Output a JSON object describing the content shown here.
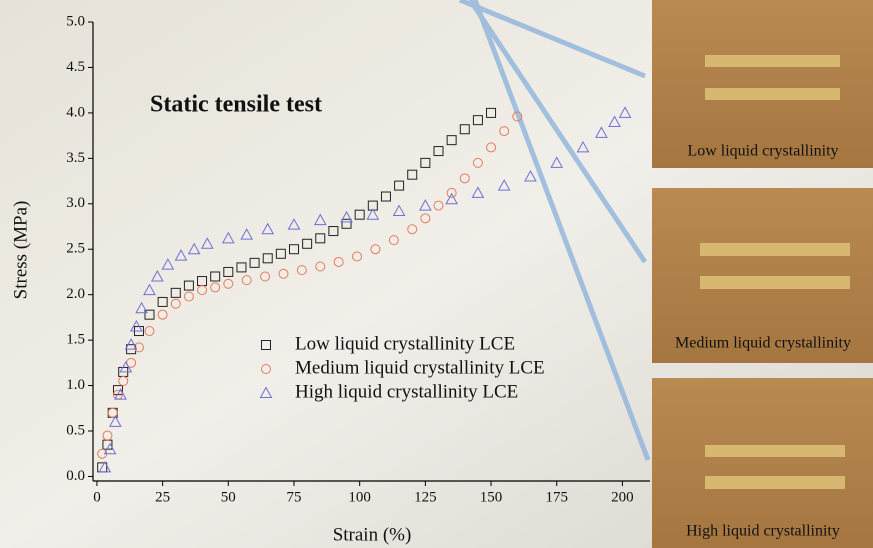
{
  "chart_data": {
    "type": "scatter",
    "title": "Static tensile test",
    "x_label": "Strain (%)",
    "y_label": "Stress (MPa)",
    "xlim": [
      -1.5,
      210.5
    ],
    "ylim": [
      -0.05,
      5
    ],
    "xticks": [
      0,
      25,
      50,
      75,
      100,
      125,
      150,
      175,
      200
    ],
    "yticks": [
      {
        "value": 0,
        "label": "0.0"
      },
      {
        "value": 0.5,
        "label": "0.5"
      },
      {
        "value": 1,
        "label": "1.0"
      },
      {
        "value": 1.5,
        "label": "1.5"
      },
      {
        "value": 2,
        "label": "2.0"
      },
      {
        "value": 2.5,
        "label": "2.5"
      },
      {
        "value": 3,
        "label": "3.0"
      },
      {
        "value": 3.5,
        "label": "3.5"
      },
      {
        "value": 4,
        "label": "4.0"
      },
      {
        "value": 4.5,
        "label": "4.5"
      },
      {
        "value": 5,
        "label": "5.0"
      }
    ],
    "series": [
      {
        "name": "Low liquid crystallinity LCE",
        "color": "#222222",
        "marker": "square",
        "x": [
          2,
          4,
          6,
          8,
          10,
          13,
          16,
          20,
          25,
          30,
          35,
          40,
          45,
          50,
          55,
          60,
          65,
          70,
          75,
          80,
          85,
          90,
          95,
          100,
          105,
          110,
          115,
          120,
          125,
          130,
          135,
          140,
          145,
          150
        ],
        "values": [
          0.1,
          0.35,
          0.7,
          0.95,
          1.15,
          1.4,
          1.6,
          1.78,
          1.92,
          2.02,
          2.1,
          2.15,
          2.2,
          2.25,
          2.3,
          2.35,
          2.4,
          2.45,
          2.5,
          2.56,
          2.62,
          2.7,
          2.78,
          2.88,
          2.98,
          3.08,
          3.2,
          3.32,
          3.45,
          3.58,
          3.7,
          3.82,
          3.92,
          4.0
        ]
      },
      {
        "name": "Medium liquid crystallinity LCE",
        "color": "#e8785a",
        "marker": "circle",
        "x": [
          2,
          4,
          6,
          8,
          10,
          13,
          16,
          20,
          25,
          30,
          35,
          40,
          45,
          50,
          57,
          64,
          71,
          78,
          85,
          92,
          99,
          106,
          113,
          120,
          125,
          130,
          135,
          140,
          145,
          150,
          155,
          160
        ],
        "values": [
          0.25,
          0.45,
          0.7,
          0.9,
          1.05,
          1.25,
          1.42,
          1.6,
          1.78,
          1.9,
          1.98,
          2.05,
          2.08,
          2.12,
          2.16,
          2.2,
          2.23,
          2.27,
          2.31,
          2.36,
          2.42,
          2.5,
          2.6,
          2.72,
          2.84,
          2.98,
          3.12,
          3.28,
          3.45,
          3.62,
          3.8,
          3.96
        ]
      },
      {
        "name": "High liquid crystallinity LCE",
        "color": "#6f6fd6",
        "marker": "triangle",
        "x": [
          3,
          5,
          7,
          9,
          11,
          13,
          15,
          17,
          20,
          23,
          27,
          32,
          37,
          42,
          50,
          57,
          65,
          75,
          85,
          95,
          105,
          115,
          125,
          135,
          145,
          155,
          165,
          175,
          185,
          192,
          197,
          201
        ],
        "values": [
          0.1,
          0.3,
          0.6,
          0.9,
          1.2,
          1.45,
          1.65,
          1.85,
          2.05,
          2.2,
          2.33,
          2.43,
          2.5,
          2.56,
          2.62,
          2.66,
          2.72,
          2.77,
          2.82,
          2.85,
          2.88,
          2.92,
          2.98,
          3.05,
          3.12,
          3.2,
          3.3,
          3.45,
          3.62,
          3.78,
          3.9,
          4.0
        ]
      }
    ],
    "panels": [
      "Low liquid crystallinity",
      "Medium liquid crystallinity",
      "High liquid crystallinity"
    ]
  }
}
